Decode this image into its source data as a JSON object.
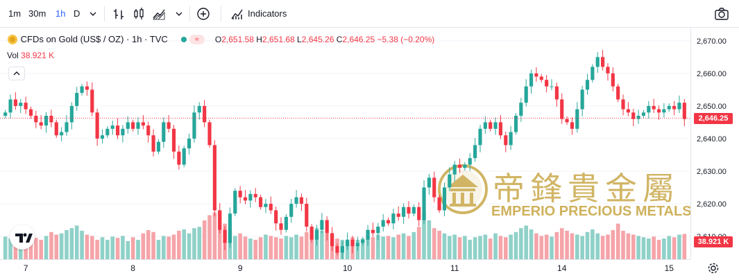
{
  "toolbar": {
    "intervals": [
      "1m",
      "30m",
      "1h",
      "D"
    ],
    "active_interval": "1h",
    "indicators_label": "Indicators"
  },
  "legend": {
    "symbol": "CFDs on Gold (US$ / OZ) · 1h · TVC",
    "o_label": "O",
    "o_value": "2,651.58",
    "h_label": "H",
    "h_value": "2,651.68",
    "l_label": "L",
    "l_value": "2,645.26",
    "c_label": "C",
    "c_value": "2,646.25",
    "change": "−5.38 (−0.20%)",
    "vol_label": "Vol",
    "vol_value": "38.921 K"
  },
  "watermark": {
    "chinese": "帝鋒貴金屬",
    "english": "EMPERIO PRECIOUS METALS"
  },
  "price_tags": {
    "last_price": "2,646.25",
    "last_volume": "38.921 K"
  },
  "colors": {
    "up": "#26a69a",
    "down": "#f23645",
    "vol_up": "#8fd1c8",
    "vol_down": "#f5a4a9",
    "gold": "#c9a94b"
  },
  "chart_data": {
    "type": "candlestick",
    "ylim": [
      2603,
      2674
    ],
    "y_ticks": [
      "2,670.00",
      "2,660.00",
      "2,650.00",
      "2,640.00",
      "2,630.00",
      "2,620.00",
      "2,610.00"
    ],
    "y_tick_values": [
      2670,
      2660,
      2650,
      2640,
      2630,
      2620,
      2610
    ],
    "x_labels": [
      "7",
      "8",
      "9",
      "10",
      "11",
      "14",
      "15"
    ],
    "x_label_index": [
      4,
      25,
      46,
      67,
      88,
      109,
      130
    ],
    "last_price": 2646.25,
    "candle_count": 134,
    "closes": [
      2648,
      2652,
      2650,
      2651,
      2649,
      2647,
      2645,
      2644,
      2647,
      2645,
      2641,
      2642,
      2645,
      2650,
      2654,
      2656,
      2655,
      2648,
      2640,
      2641,
      2643,
      2644,
      2641,
      2643,
      2645,
      2643,
      2645,
      2644,
      2641,
      2636,
      2639,
      2645,
      2643,
      2636,
      2632,
      2637,
      2640,
      2648,
      2650,
      2645,
      2638,
      2618,
      2612,
      2608,
      2617,
      2624,
      2622,
      2621,
      2623,
      2622,
      2619,
      2620,
      2618,
      2614,
      2612,
      2616,
      2620,
      2622,
      2620,
      2613,
      2609,
      2612,
      2615,
      2611,
      2607,
      2605,
      2607,
      2609,
      2607,
      2608,
      2609,
      2612,
      2611,
      2613,
      2615,
      2614,
      2617,
      2616,
      2619,
      2617,
      2619,
      2615,
      2625,
      2628,
      2622,
      2618,
      2625,
      2629,
      2632,
      2631,
      2632,
      2634,
      2638,
      2643,
      2645,
      2643,
      2645,
      2641,
      2638,
      2642,
      2647,
      2651,
      2656,
      2660,
      2659,
      2658,
      2656,
      2656,
      2652,
      2646,
      2645,
      2643,
      2649,
      2655,
      2658,
      2662,
      2665,
      2662,
      2660,
      2656,
      2652,
      2649,
      2648,
      2646,
      2647,
      2648,
      2650,
      2649,
      2648,
      2649,
      2650,
      2649,
      2651,
      2646
    ],
    "volumes": [
      35,
      32,
      30,
      34,
      28,
      40,
      33,
      30,
      36,
      42,
      38,
      40,
      45,
      48,
      52,
      44,
      38,
      36,
      30,
      34,
      30,
      35,
      33,
      36,
      28,
      34,
      30,
      40,
      45,
      42,
      30,
      36,
      35,
      38,
      44,
      46,
      40,
      48,
      50,
      60,
      68,
      72,
      75,
      55,
      45,
      36,
      40,
      35,
      32,
      30,
      34,
      38,
      36,
      34,
      32,
      36,
      34,
      38,
      35,
      42,
      45,
      48,
      44,
      40,
      36,
      32,
      30,
      28,
      34,
      30,
      32,
      36,
      34,
      38,
      35,
      36,
      34,
      38,
      40,
      36,
      42,
      50,
      72,
      60,
      48,
      44,
      40,
      36,
      38,
      34,
      36,
      30,
      34,
      36,
      38,
      32,
      40,
      36,
      34,
      38,
      42,
      48,
      52,
      46,
      40,
      36,
      38,
      35,
      42,
      48,
      44,
      40,
      38,
      36,
      42,
      46,
      40,
      36,
      38,
      45,
      55,
      44,
      40,
      38,
      36,
      34,
      32,
      35,
      30,
      32,
      36,
      34,
      38,
      39
    ]
  }
}
